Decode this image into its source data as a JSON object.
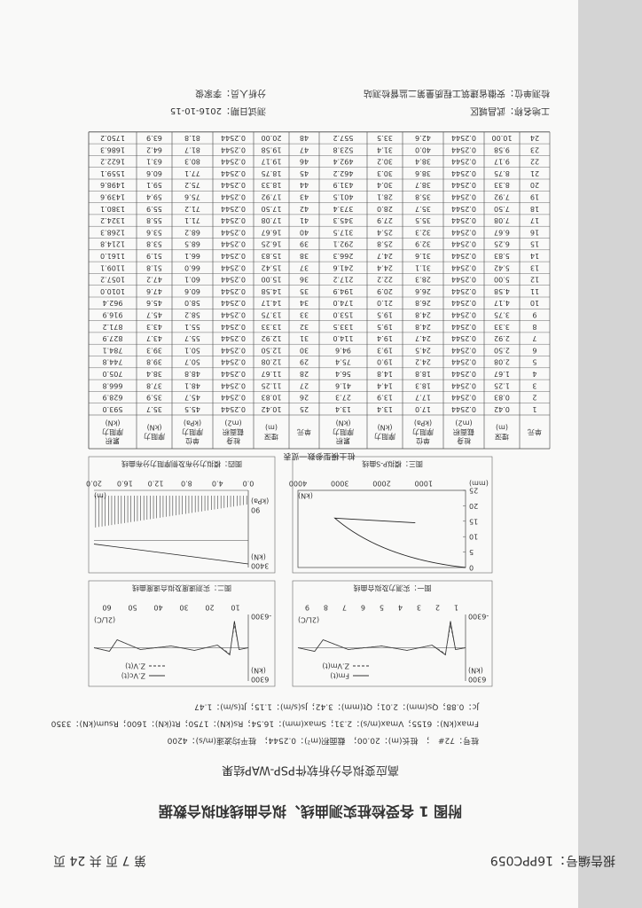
{
  "header": {
    "report_no": "报告编号：16PPC059",
    "page": "第 7 页 共 24 页"
  },
  "title": "附图 1 各受检桩实测曲线、拟合曲线和拟合数据",
  "subtitle": "高应变拟合分析软件PSP-WAP结果",
  "info": [
    "桩号：72#　；　桩长(m)：20.00；　截面积(m²)：0.2544；　桩平均波速(m/s)：4200",
    "Fmax(kN)：6155；Vmax(m/s)：2.31；Smax(mm)：16.54；Rs(kN)：1750；Rt(kN)：1600；Rsum(kN)：3350",
    "Jc：0.88；Qs(mm)：2.01；Qt(mm)：3.42；Js(s/m)：1.15；Jt(s/m)：1.47"
  ],
  "figures": [
    {
      "title": "图一：实测力及拟合曲线",
      "legend": [
        "Fm(t)",
        "Z.Vm(t)"
      ],
      "y_top": "6300",
      "y_unit": "(kN)",
      "y_bottom": "-6300",
      "x_ticks": [
        "1",
        "2",
        "3",
        "4",
        "5",
        "6",
        "7",
        "8",
        "9"
      ],
      "x_unit": "(2L/C)"
    },
    {
      "title": "图二：实测速度及拟合速度曲线",
      "legend": [
        "Z.Vc(t)",
        "Z.V(t)"
      ],
      "y_top": "6300",
      "y_unit": "(kN)",
      "y_bottom": "-6300",
      "x_ticks": [
        "10",
        "20",
        "30",
        "40",
        "50",
        "60"
      ],
      "x_unit": "(2L/C)"
    },
    {
      "title": "图三：模拟P-S曲线",
      "x_ticks": [
        "1000",
        "2000",
        "3000",
        "4000"
      ],
      "x_unit": "(kN)",
      "y_ticks": [
        "0",
        "5",
        "10",
        "15",
        "20",
        "25"
      ],
      "y_unit": "(mm)"
    },
    {
      "title": "图四：模拟力分布及侧摩阻力分布曲线",
      "x_ticks": [
        "0.0",
        "4.0",
        "8.0",
        "12.0",
        "16.0",
        "20.0"
      ],
      "x_unit": "(m)",
      "y_top": "3400",
      "y_unit": "(kN)",
      "y_mid": "90",
      "y_mid_unit": "(kPa)"
    }
  ],
  "table": {
    "caption": "桩土模型参数一览表",
    "columns": [
      [
        "单元"
      ],
      [
        "埋深",
        "(m)"
      ],
      [
        "桩身",
        "截面积",
        "(m2)"
      ],
      [
        "单位",
        "摩阻力",
        "(kPa)"
      ],
      [
        "摩阻力",
        "(kN)"
      ],
      [
        "累积",
        "摩阻力",
        "(kN)"
      ]
    ],
    "rows": [
      [
        "1",
        "0.42",
        "0.2544",
        "17.0",
        "13.4",
        "13.4"
      ],
      [
        "2",
        "0.83",
        "0.2544",
        "17.7",
        "13.9",
        "27.3"
      ],
      [
        "3",
        "1.25",
        "0.2544",
        "18.3",
        "14.4",
        "41.6"
      ],
      [
        "4",
        "1.67",
        "0.2544",
        "18.8",
        "14.8",
        "56.4"
      ],
      [
        "5",
        "2.08",
        "0.2544",
        "24.2",
        "19.0",
        "75.4"
      ],
      [
        "6",
        "2.50",
        "0.2544",
        "24.5",
        "19.3",
        "94.6"
      ],
      [
        "7",
        "2.92",
        "0.2544",
        "24.7",
        "19.4",
        "114.0"
      ],
      [
        "8",
        "3.33",
        "0.2544",
        "24.8",
        "19.5",
        "133.5"
      ],
      [
        "9",
        "3.75",
        "0.2544",
        "24.8",
        "19.5",
        "153.0"
      ],
      [
        "10",
        "4.17",
        "0.2544",
        "26.8",
        "21.0",
        "174.0"
      ],
      [
        "11",
        "4.58",
        "0.2544",
        "26.6",
        "20.9",
        "194.9"
      ],
      [
        "12",
        "5.00",
        "0.2544",
        "28.3",
        "22.2",
        "217.2"
      ],
      [
        "13",
        "5.42",
        "0.2544",
        "31.1",
        "24.4",
        "241.6"
      ],
      [
        "14",
        "5.83",
        "0.2544",
        "31.6",
        "24.7",
        "266.3"
      ],
      [
        "15",
        "6.25",
        "0.2544",
        "32.9",
        "25.8",
        "292.1"
      ],
      [
        "16",
        "6.67",
        "0.2544",
        "32.3",
        "25.4",
        "317.5"
      ],
      [
        "17",
        "7.08",
        "0.2544",
        "35.5",
        "27.9",
        "345.3"
      ],
      [
        "18",
        "7.50",
        "0.2544",
        "35.7",
        "28.0",
        "373.4"
      ],
      [
        "19",
        "7.92",
        "0.2544",
        "35.8",
        "28.1",
        "401.5"
      ],
      [
        "20",
        "8.33",
        "0.2544",
        "38.7",
        "30.4",
        "431.9"
      ],
      [
        "21",
        "8.75",
        "0.2544",
        "38.6",
        "30.3",
        "462.2"
      ],
      [
        "22",
        "9.17",
        "0.2544",
        "38.4",
        "30.2",
        "492.4"
      ],
      [
        "23",
        "9.58",
        "0.2544",
        "40.0",
        "31.4",
        "523.8"
      ],
      [
        "24",
        "10.00",
        "0.2544",
        "42.6",
        "33.5",
        "557.2"
      ],
      [
        "25",
        "10.42",
        "0.2544",
        "45.5",
        "35.7",
        "593.0"
      ],
      [
        "26",
        "10.83",
        "0.2544",
        "45.7",
        "35.9",
        "628.9"
      ],
      [
        "27",
        "11.25",
        "0.2544",
        "48.1",
        "37.8",
        "666.8"
      ],
      [
        "28",
        "11.67",
        "0.2544",
        "48.8",
        "38.4",
        "705.0"
      ],
      [
        "29",
        "12.08",
        "0.2544",
        "50.7",
        "39.8",
        "744.8"
      ],
      [
        "30",
        "12.50",
        "0.2544",
        "50.1",
        "39.3",
        "784.1"
      ],
      [
        "31",
        "12.92",
        "0.2544",
        "55.7",
        "43.7",
        "827.9"
      ],
      [
        "32",
        "13.33",
        "0.2544",
        "55.1",
        "43.3",
        "871.2"
      ],
      [
        "33",
        "13.75",
        "0.2544",
        "58.2",
        "45.7",
        "916.9"
      ],
      [
        "34",
        "14.17",
        "0.2544",
        "58.0",
        "45.6",
        "962.4"
      ],
      [
        "35",
        "14.58",
        "0.2544",
        "60.6",
        "47.6",
        "1010.0"
      ],
      [
        "36",
        "15.00",
        "0.2544",
        "60.1",
        "47.2",
        "1057.2"
      ],
      [
        "37",
        "15.42",
        "0.2544",
        "66.0",
        "51.8",
        "1109.1"
      ],
      [
        "38",
        "15.83",
        "0.2544",
        "66.1",
        "51.9",
        "1161.0"
      ],
      [
        "39",
        "16.25",
        "0.2544",
        "68.5",
        "53.8",
        "1214.8"
      ],
      [
        "40",
        "16.67",
        "0.2544",
        "68.2",
        "53.6",
        "1268.3"
      ],
      [
        "41",
        "17.08",
        "0.2544",
        "71.1",
        "55.8",
        "1324.2"
      ],
      [
        "42",
        "17.50",
        "0.2544",
        "71.2",
        "55.9",
        "1380.1"
      ],
      [
        "43",
        "17.92",
        "0.2544",
        "75.6",
        "59.4",
        "1439.6"
      ],
      [
        "44",
        "18.33",
        "0.2544",
        "75.2",
        "59.1",
        "1498.6"
      ],
      [
        "45",
        "18.75",
        "0.2544",
        "77.1",
        "60.6",
        "1559.1"
      ],
      [
        "46",
        "19.17",
        "0.2544",
        "80.3",
        "63.1",
        "1622.2"
      ],
      [
        "47",
        "19.58",
        "0.2544",
        "81.7",
        "64.2",
        "1686.3"
      ],
      [
        "48",
        "20.00",
        "0.2544",
        "81.8",
        "63.9",
        "1750.2"
      ]
    ]
  },
  "footer": {
    "site": "工地名称：武昌城区",
    "unit": "检测单位：安徽省建筑工程质量第二监督检测站",
    "date": "测试日期：2016-10-15",
    "analyst": "分析人员：李家俊"
  }
}
